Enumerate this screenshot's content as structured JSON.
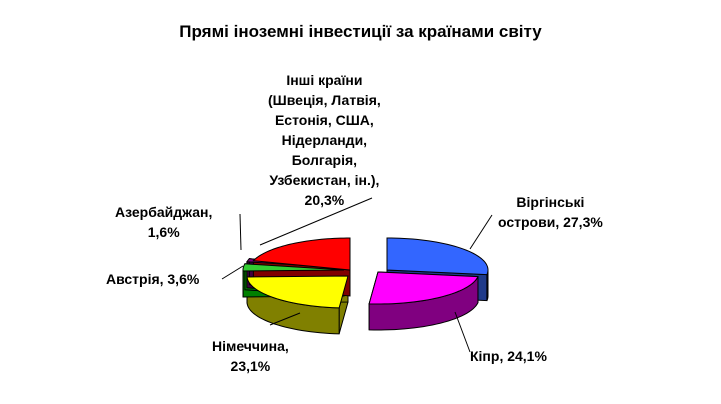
{
  "chart_data": {
    "type": "pie",
    "style": "3d-exploded",
    "title": "Прямі іноземні інвестиції за країнами світу",
    "start_angle": "12 o'clock",
    "direction": "clockwise",
    "slices": [
      {
        "label": "Віргінські острови",
        "value": 27.3,
        "text": "Віргінські\nострови, 27,3%",
        "color": "#3366ff",
        "side": "#1f3a8a"
      },
      {
        "label": "Кіпр",
        "value": 24.1,
        "text": "Кіпр, 24,1%",
        "color": "#ff00ff",
        "side": "#800080"
      },
      {
        "label": "Німеччина",
        "value": 23.1,
        "text": "Німеччина,\n23,1%",
        "color": "#ffff00",
        "side": "#808000"
      },
      {
        "label": "Австрія",
        "value": 3.6,
        "text": "Австрія, 3,6%",
        "color": "#33cc33",
        "side": "#008000"
      },
      {
        "label": "Азербайджан",
        "value": 1.6,
        "text": "Азербайджан,\n1,6%",
        "color": "#800080",
        "side": "#400040"
      },
      {
        "label": "Інші країни (Швеція, Латвія, Естонія, США, Нідерланди, Болгарія, Узбекистан, ін.)",
        "value": 20.3,
        "text": "Інші країни\n(Швеція, Латвія,\nЕстонія, США,\nНідерланди,\nБолгарія,\nУзбекистан, ін.),\n20,3%",
        "color": "#ff0000",
        "side": "#800000"
      }
    ]
  }
}
